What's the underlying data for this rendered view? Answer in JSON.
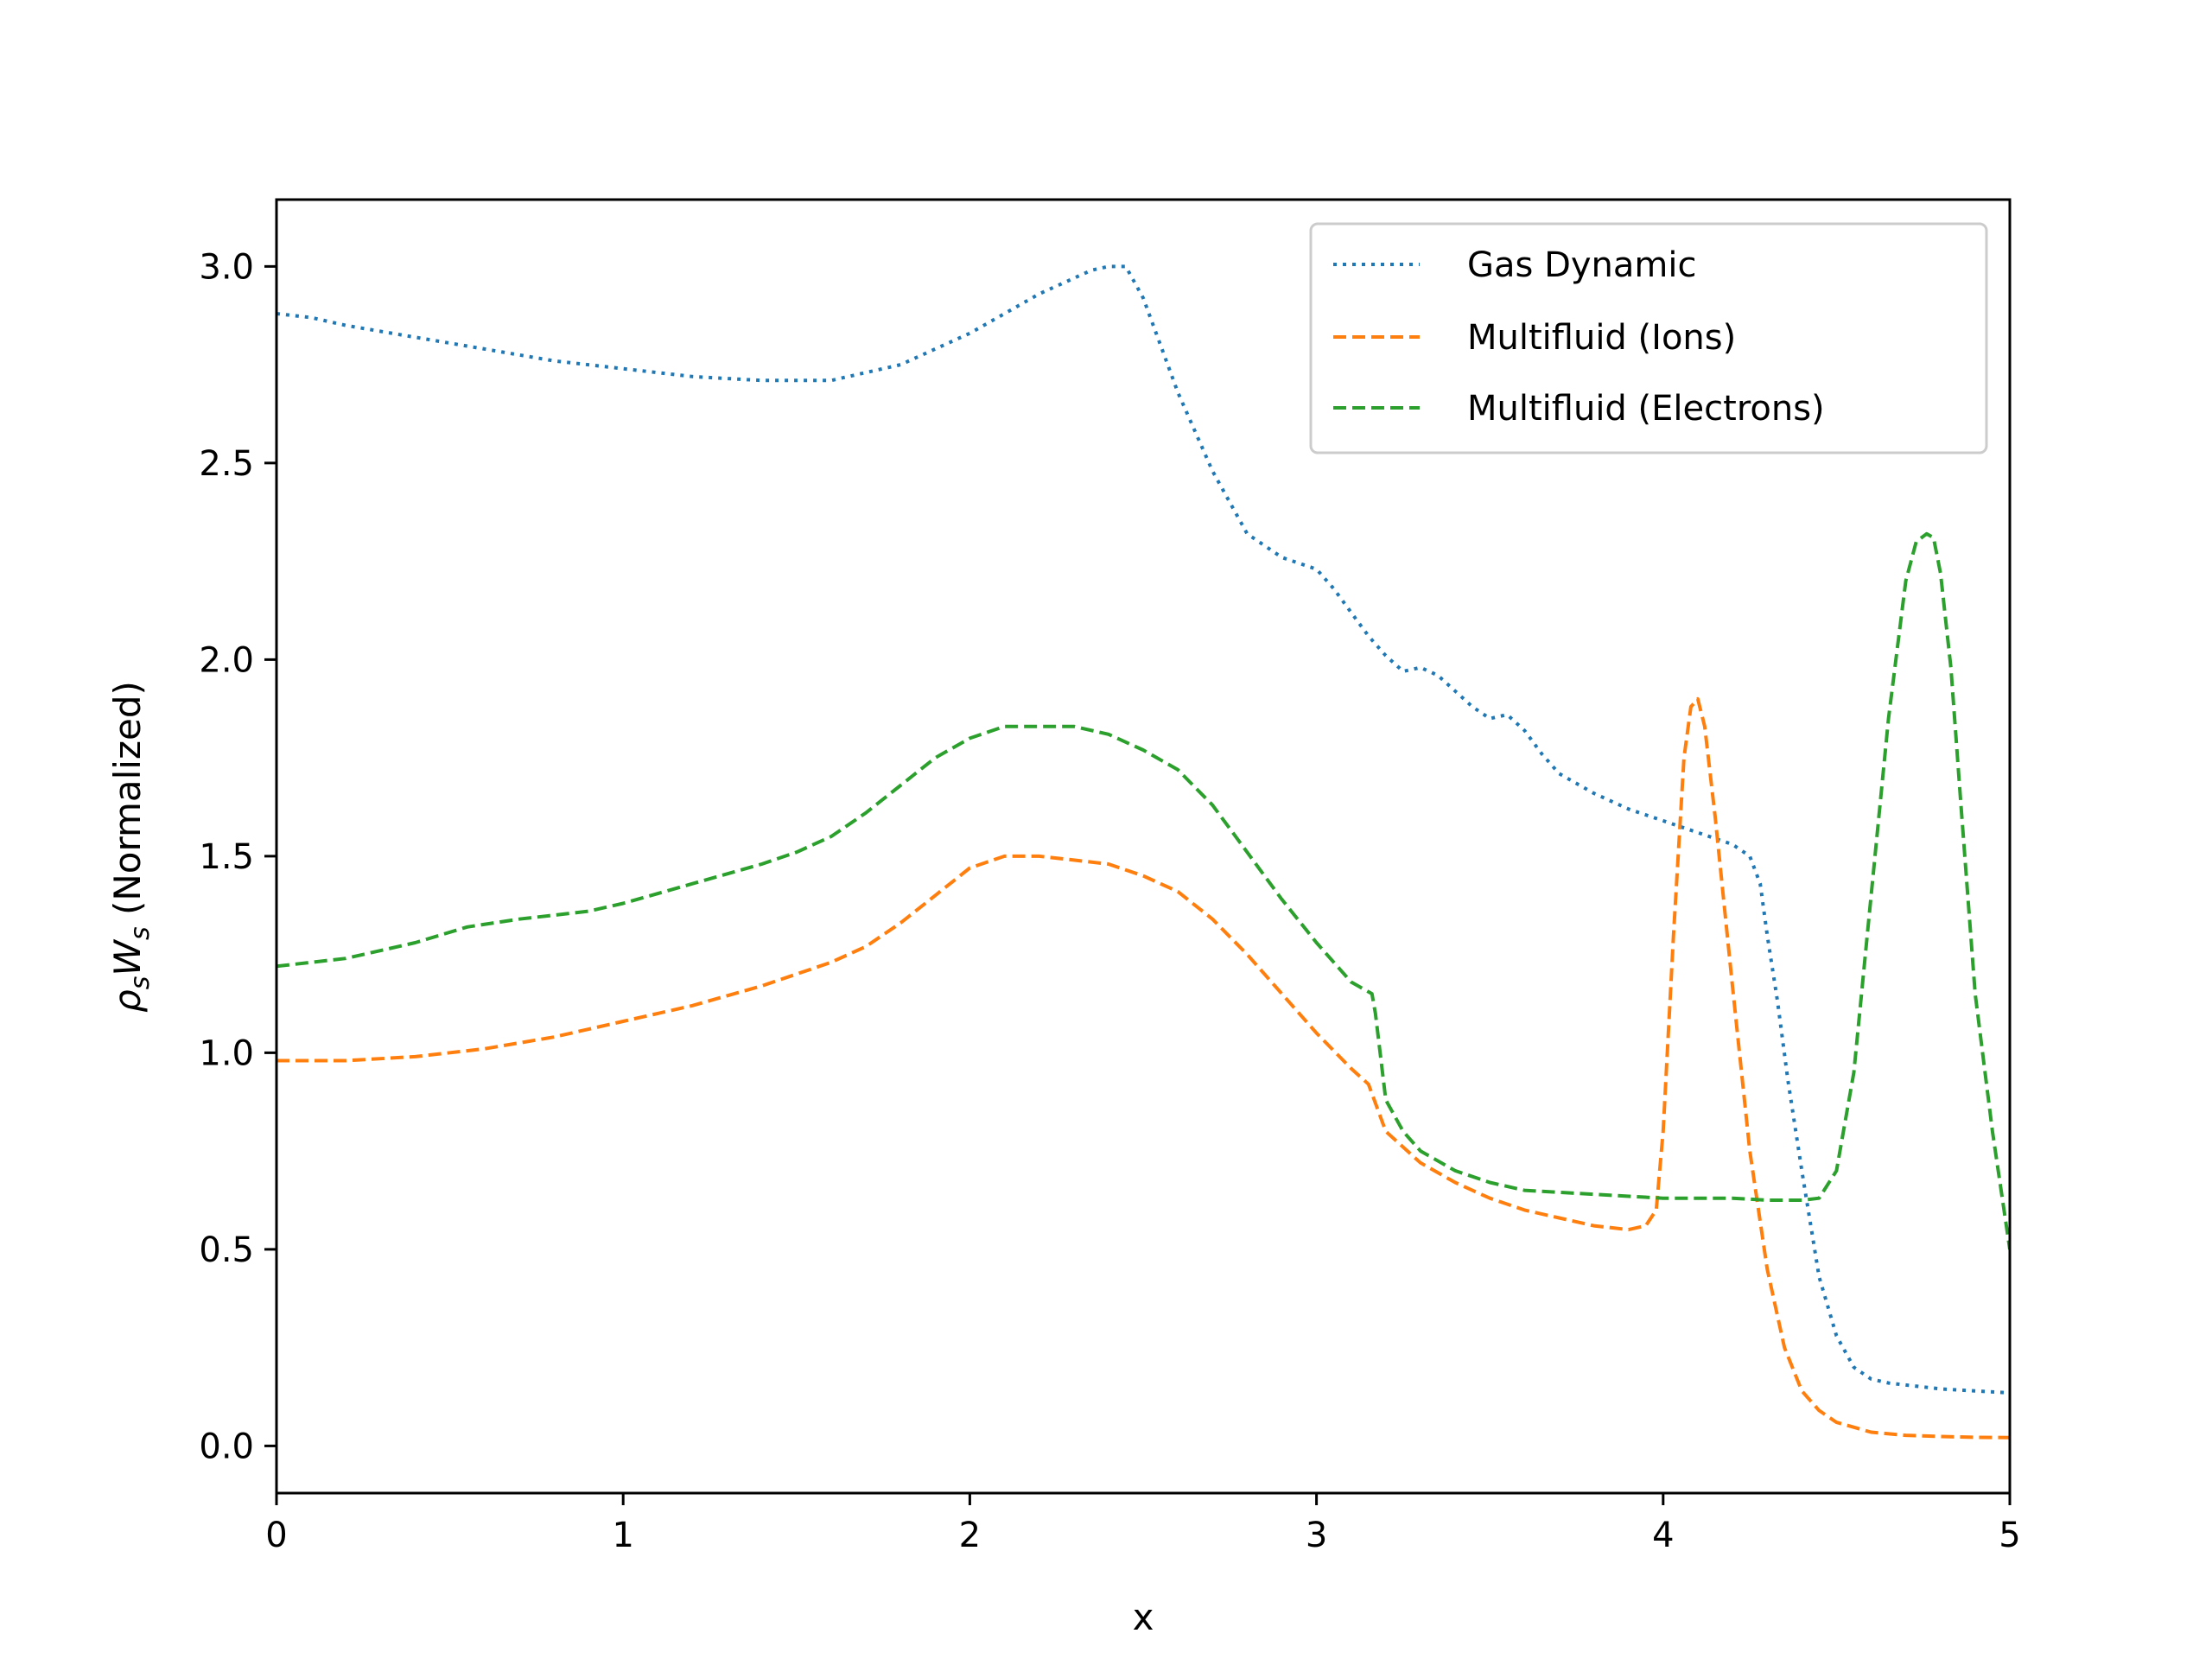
{
  "chart_data": {
    "type": "line",
    "xlabel": "x",
    "ylabel": {
      "rho": "ρ",
      "rho_sub": "s",
      "w": "W",
      "w_sub": "s",
      "rest": " (Normalized)"
    },
    "xlim": [
      0,
      5
    ],
    "ylim": [
      -0.12,
      3.17
    ],
    "xticks": [
      0,
      1,
      2,
      3,
      4,
      5
    ],
    "xtick_labels": [
      "0",
      "1",
      "2",
      "3",
      "4",
      "5"
    ],
    "yticks": [
      0.0,
      0.5,
      1.0,
      1.5,
      2.0,
      2.5,
      3.0
    ],
    "ytick_labels": [
      "0.0",
      "0.5",
      "1.0",
      "1.5",
      "2.0",
      "2.5",
      "3.0"
    ],
    "grid": false,
    "legend_position": "top-right",
    "series": [
      {
        "name": "Gas Dynamic",
        "color": "#1f77b4",
        "style": "dotted",
        "x": [
          0,
          0.1,
          0.2,
          0.4,
          0.6,
          0.8,
          1.0,
          1.2,
          1.4,
          1.5,
          1.6,
          1.7,
          1.8,
          1.9,
          2.0,
          2.1,
          2.2,
          2.3,
          2.35,
          2.4,
          2.45,
          2.5,
          2.55,
          2.6,
          2.7,
          2.8,
          2.9,
          3.0,
          3.05,
          3.1,
          3.15,
          3.2,
          3.25,
          3.3,
          3.35,
          3.4,
          3.45,
          3.5,
          3.55,
          3.6,
          3.65,
          3.7,
          3.8,
          3.9,
          4.0,
          4.1,
          4.2,
          4.25,
          4.28,
          4.3,
          4.33,
          4.36,
          4.4,
          4.45,
          4.5,
          4.55,
          4.6,
          4.65,
          4.7,
          4.8,
          4.9,
          5.0
        ],
        "y": [
          2.88,
          2.87,
          2.85,
          2.82,
          2.79,
          2.76,
          2.74,
          2.72,
          2.71,
          2.71,
          2.71,
          2.73,
          2.75,
          2.79,
          2.83,
          2.88,
          2.93,
          2.97,
          2.99,
          3.0,
          3.0,
          2.92,
          2.8,
          2.68,
          2.48,
          2.32,
          2.26,
          2.23,
          2.18,
          2.12,
          2.06,
          2.01,
          1.97,
          1.98,
          1.96,
          1.92,
          1.88,
          1.85,
          1.86,
          1.82,
          1.76,
          1.71,
          1.66,
          1.62,
          1.59,
          1.56,
          1.53,
          1.5,
          1.43,
          1.3,
          1.13,
          0.93,
          0.7,
          0.43,
          0.28,
          0.2,
          0.17,
          0.16,
          0.155,
          0.145,
          0.14,
          0.135
        ]
      },
      {
        "name": "Multifluid (Ions)",
        "color": "#ff7f0e",
        "style": "dashed",
        "x": [
          0,
          0.2,
          0.4,
          0.6,
          0.8,
          1.0,
          1.2,
          1.4,
          1.6,
          1.7,
          1.8,
          1.9,
          2.0,
          2.1,
          2.2,
          2.3,
          2.4,
          2.5,
          2.6,
          2.7,
          2.8,
          2.9,
          3.0,
          3.1,
          3.15,
          3.2,
          3.3,
          3.4,
          3.5,
          3.6,
          3.7,
          3.8,
          3.9,
          3.95,
          3.98,
          4.0,
          4.03,
          4.06,
          4.08,
          4.1,
          4.12,
          4.15,
          4.2,
          4.25,
          4.3,
          4.35,
          4.4,
          4.45,
          4.5,
          4.6,
          4.7,
          4.8,
          4.9,
          5.0
        ],
        "y": [
          0.98,
          0.98,
          0.99,
          1.01,
          1.04,
          1.08,
          1.12,
          1.17,
          1.23,
          1.27,
          1.33,
          1.4,
          1.47,
          1.5,
          1.5,
          1.49,
          1.48,
          1.45,
          1.41,
          1.34,
          1.25,
          1.15,
          1.05,
          0.96,
          0.92,
          0.8,
          0.72,
          0.67,
          0.63,
          0.6,
          0.58,
          0.56,
          0.55,
          0.56,
          0.6,
          0.8,
          1.3,
          1.75,
          1.88,
          1.9,
          1.83,
          1.6,
          1.17,
          0.75,
          0.45,
          0.25,
          0.14,
          0.09,
          0.06,
          0.035,
          0.027,
          0.024,
          0.022,
          0.021
        ]
      },
      {
        "name": "Multifluid (Electrons)",
        "color": "#2ca02c",
        "style": "dashed",
        "x": [
          0,
          0.2,
          0.4,
          0.55,
          0.7,
          0.9,
          1.0,
          1.2,
          1.4,
          1.5,
          1.6,
          1.7,
          1.8,
          1.9,
          2.0,
          2.1,
          2.2,
          2.3,
          2.4,
          2.5,
          2.6,
          2.7,
          2.8,
          2.9,
          3.0,
          3.1,
          3.16,
          3.17,
          3.2,
          3.25,
          3.3,
          3.4,
          3.5,
          3.6,
          3.8,
          4.0,
          4.2,
          4.3,
          4.4,
          4.45,
          4.5,
          4.55,
          4.6,
          4.65,
          4.7,
          4.73,
          4.76,
          4.78,
          4.8,
          4.83,
          4.86,
          4.9,
          4.95,
          5.0
        ],
        "y": [
          1.22,
          1.24,
          1.28,
          1.32,
          1.34,
          1.36,
          1.38,
          1.43,
          1.48,
          1.51,
          1.55,
          1.61,
          1.68,
          1.75,
          1.8,
          1.83,
          1.83,
          1.83,
          1.81,
          1.77,
          1.72,
          1.63,
          1.51,
          1.39,
          1.28,
          1.18,
          1.15,
          1.1,
          0.88,
          0.8,
          0.75,
          0.7,
          0.67,
          0.65,
          0.64,
          0.63,
          0.63,
          0.625,
          0.625,
          0.63,
          0.7,
          0.95,
          1.4,
          1.85,
          2.2,
          2.3,
          2.32,
          2.31,
          2.22,
          1.98,
          1.62,
          1.15,
          0.8,
          0.5
        ]
      }
    ]
  }
}
